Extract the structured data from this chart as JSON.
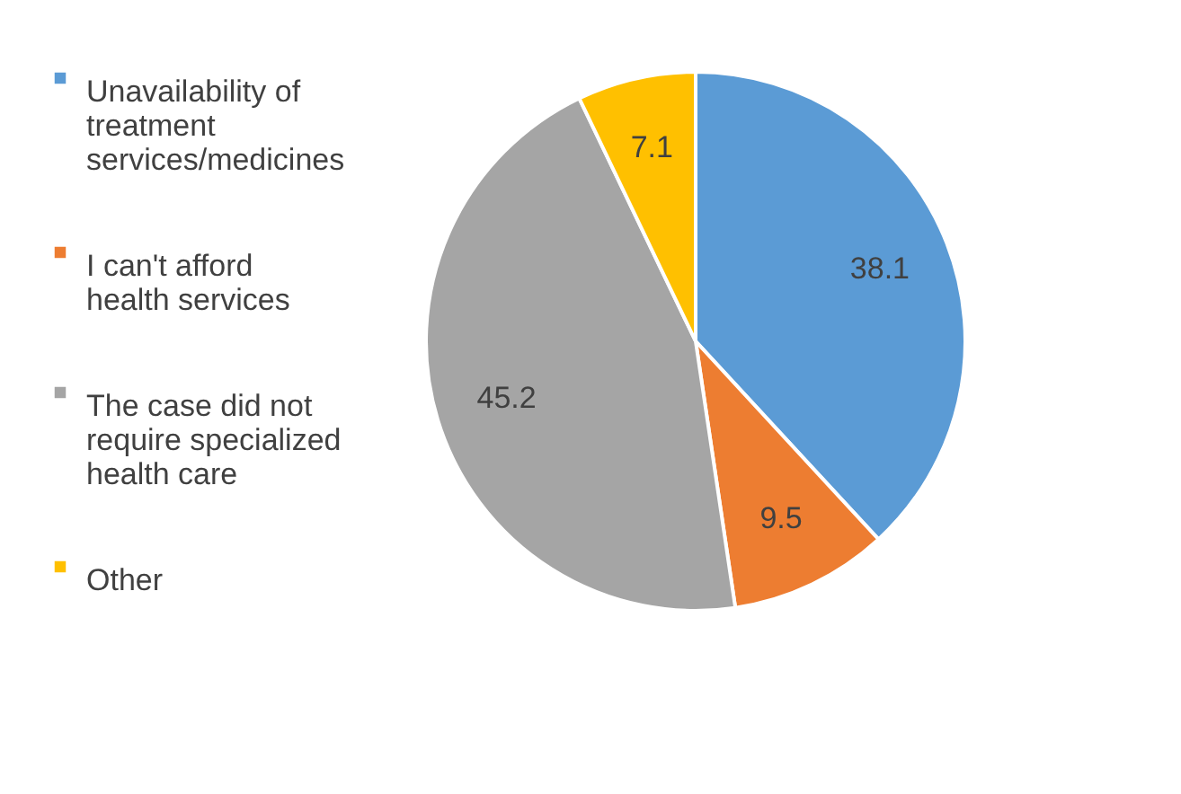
{
  "chart_data": {
    "type": "pie",
    "categories": [
      "Unavailability of treatment services/medicines",
      "I can't afford health services",
      "The case did not require specialized health care",
      "Other"
    ],
    "values": [
      38.1,
      9.5,
      45.2,
      7.1
    ],
    "colors": [
      "#5b9bd5",
      "#ed7d31",
      "#a5a5a5",
      "#ffc000"
    ],
    "data_labels": true,
    "legend": "left"
  }
}
